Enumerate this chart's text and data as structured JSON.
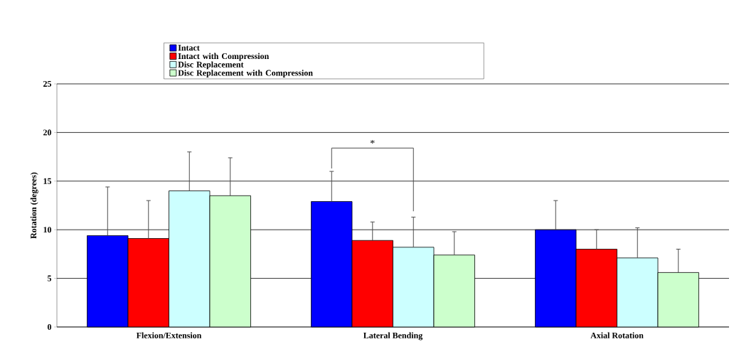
{
  "chart_data": {
    "type": "bar",
    "ylabel": "Rotation (degrees)",
    "categories": [
      "Flexion/Extension",
      "Lateral Bending",
      "Axial Rotation"
    ],
    "series": [
      {
        "name": "Intact",
        "color": "#0000ff",
        "values": [
          9.4,
          12.9,
          10.0
        ],
        "errors": [
          5.0,
          3.1,
          3.0
        ]
      },
      {
        "name": "Intact with Compression",
        "color": "#ff0000",
        "values": [
          9.1,
          8.9,
          8.0
        ],
        "errors": [
          3.9,
          1.9,
          2.0
        ]
      },
      {
        "name": "Disc Replacement",
        "color": "#ccffff",
        "values": [
          14.0,
          8.2,
          7.1
        ],
        "errors": [
          4.0,
          3.1,
          3.1
        ]
      },
      {
        "name": "Disc Replacement with Compression",
        "color": "#ccffcc",
        "values": [
          13.5,
          7.4,
          5.6
        ],
        "errors": [
          3.9,
          2.4,
          2.4
        ]
      }
    ],
    "ylim": [
      0,
      25
    ],
    "yticks": [
      0,
      5,
      10,
      15,
      20,
      25
    ],
    "grid": "y",
    "legend": "top",
    "annotations": [
      "*"
    ]
  }
}
